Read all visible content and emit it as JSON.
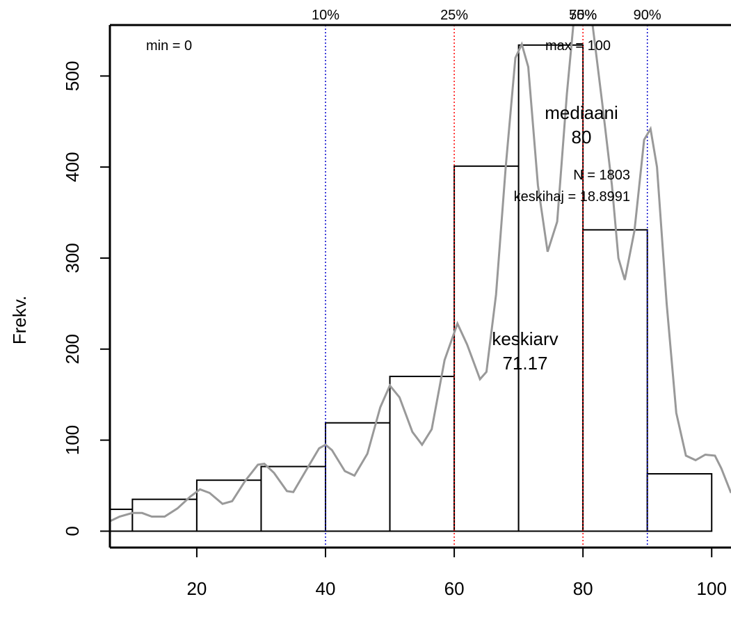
{
  "chart_data": {
    "type": "bar",
    "xlabel": "",
    "ylabel": "Frekv.",
    "xlim": [
      6.5,
      103
    ],
    "ylim": [
      -18,
      556
    ],
    "x_ticks": [
      20,
      40,
      60,
      80,
      100
    ],
    "y_ticks": [
      0,
      100,
      200,
      300,
      400,
      500
    ],
    "bins": [
      {
        "from": 0,
        "to": 10,
        "count": 24
      },
      {
        "from": 10,
        "to": 20,
        "count": 35
      },
      {
        "from": 20,
        "to": 30,
        "count": 56
      },
      {
        "from": 30,
        "to": 40,
        "count": 71
      },
      {
        "from": 40,
        "to": 50,
        "count": 119
      },
      {
        "from": 50,
        "to": 60,
        "count": 170
      },
      {
        "from": 60,
        "to": 70,
        "count": 401
      },
      {
        "from": 70,
        "to": 80,
        "count": 534
      },
      {
        "from": 80,
        "to": 90,
        "count": 331
      },
      {
        "from": 90,
        "to": 100,
        "count": 63
      }
    ],
    "density_curve": {
      "color": "#999999",
      "points": [
        [
          6.5,
          11
        ],
        [
          8,
          16
        ],
        [
          10,
          20
        ],
        [
          11.5,
          20
        ],
        [
          13,
          16
        ],
        [
          15,
          16
        ],
        [
          17,
          25
        ],
        [
          19,
          38
        ],
        [
          20.5,
          46
        ],
        [
          22,
          42
        ],
        [
          24,
          30
        ],
        [
          25.5,
          33
        ],
        [
          27.5,
          55
        ],
        [
          29.5,
          73
        ],
        [
          30.5,
          74
        ],
        [
          32,
          64
        ],
        [
          34,
          44
        ],
        [
          35,
          43
        ],
        [
          37,
          67
        ],
        [
          39,
          91
        ],
        [
          40,
          95
        ],
        [
          41,
          89
        ],
        [
          43,
          66
        ],
        [
          44.5,
          61
        ],
        [
          46.5,
          85
        ],
        [
          48.5,
          136
        ],
        [
          50,
          160
        ],
        [
          51.5,
          147
        ],
        [
          53.5,
          109
        ],
        [
          55,
          95
        ],
        [
          56.5,
          112
        ],
        [
          58.5,
          188
        ],
        [
          60.5,
          228
        ],
        [
          62,
          205
        ],
        [
          64,
          167
        ],
        [
          65,
          175
        ],
        [
          66.5,
          260
        ],
        [
          68,
          400
        ],
        [
          69.5,
          520
        ],
        [
          70.5,
          535
        ],
        [
          71.5,
          510
        ],
        [
          73,
          380
        ],
        [
          74.5,
          307
        ],
        [
          76,
          340
        ],
        [
          77.5,
          480
        ],
        [
          78.5,
          556
        ],
        [
          81.5,
          556
        ],
        [
          83,
          470
        ],
        [
          84.5,
          380
        ],
        [
          85.5,
          300
        ],
        [
          86.5,
          276
        ],
        [
          88,
          330
        ],
        [
          89.5,
          430
        ],
        [
          90.5,
          442
        ],
        [
          91.5,
          400
        ],
        [
          93,
          250
        ],
        [
          94.5,
          130
        ],
        [
          96,
          83
        ],
        [
          97.5,
          78
        ],
        [
          99,
          84
        ],
        [
          100.5,
          83
        ],
        [
          101.5,
          69
        ],
        [
          103,
          42
        ]
      ]
    },
    "quantile_lines": [
      {
        "label": "10%",
        "x": 40,
        "color": "#0000cc"
      },
      {
        "label": "25%",
        "x": 60,
        "color": "#ff0000"
      },
      {
        "label": "50%",
        "x": 80,
        "color": "#ff0000"
      },
      {
        "label": "75%",
        "x": 80,
        "color": "#ff0000"
      },
      {
        "label": "90%",
        "x": 90,
        "color": "#0000cc"
      }
    ],
    "annotations": {
      "min": "min = 0",
      "max": "max = 100",
      "median_label": "mediaani",
      "median_value": "80",
      "n": "N = 1803",
      "sd": "keskihaj = 18.8991",
      "mean_label": "keskiarv",
      "mean_value": "71.17"
    }
  }
}
